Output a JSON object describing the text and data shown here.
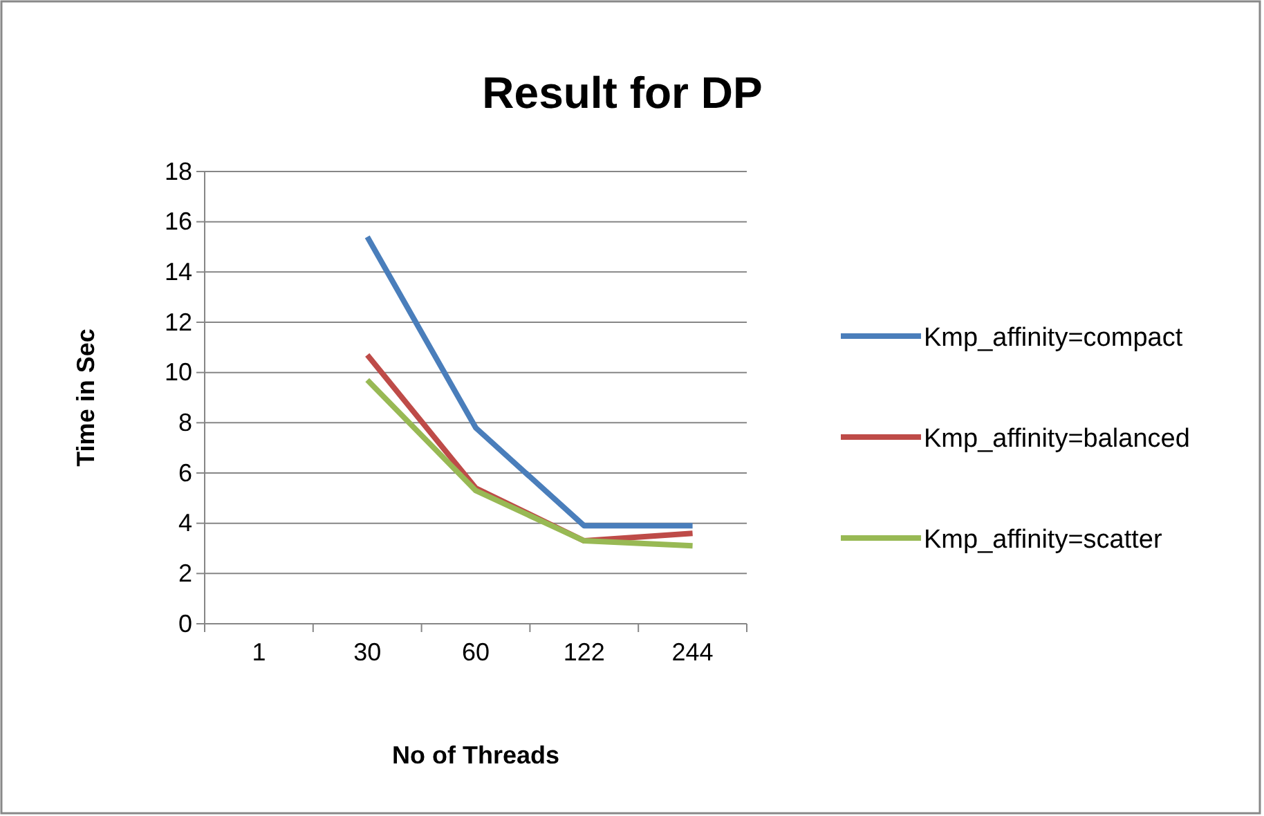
{
  "chart_data": {
    "type": "line",
    "title": "Result for DP",
    "xlabel": "No of Threads",
    "ylabel": "Time in Sec",
    "categories": [
      "1",
      "30",
      "60",
      "122",
      "244"
    ],
    "series": [
      {
        "name": "Kmp_affinity=compact",
        "color": "#4a7ebb",
        "values": [
          null,
          15.4,
          7.8,
          3.9,
          3.9
        ]
      },
      {
        "name": "Kmp_affinity=balanced",
        "color": "#be4b48",
        "values": [
          null,
          10.7,
          5.4,
          3.3,
          3.6
        ]
      },
      {
        "name": "Kmp_affinity=scatter",
        "color": "#98b954",
        "values": [
          null,
          9.7,
          5.3,
          3.3,
          3.1
        ]
      }
    ],
    "ylim": [
      0,
      18
    ],
    "yticks": [
      0,
      2,
      4,
      6,
      8,
      10,
      12,
      14,
      16,
      18
    ],
    "grid": "y",
    "legend": "right",
    "marker": "none",
    "line_style": "solid"
  }
}
